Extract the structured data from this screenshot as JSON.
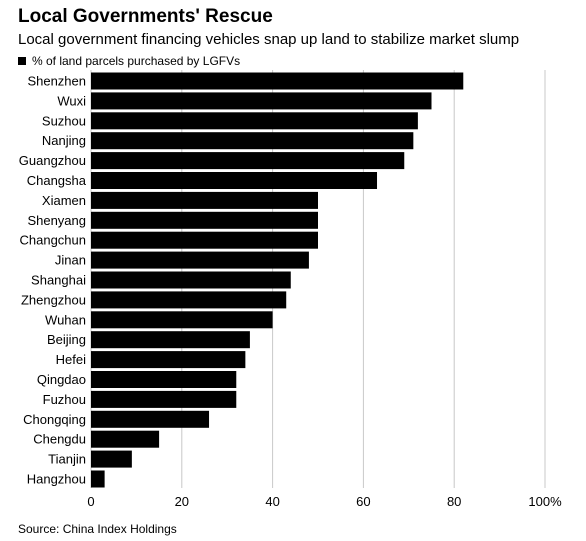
{
  "header": {
    "title": "Local Governments' Rescue",
    "subtitle": "Local government financing vehicles snap up land to stabilize market slump"
  },
  "legend": {
    "label": "% of land parcels purchased by LGFVs"
  },
  "footer": {
    "source": "Source: China Index Holdings"
  },
  "colors": {
    "bar": "#000000",
    "grid": "#c8c8c8",
    "text": "#000000",
    "background": "#ffffff"
  },
  "chart_data": {
    "type": "bar",
    "orientation": "horizontal",
    "title": "Local Governments' Rescue",
    "subtitle": "Local government financing vehicles snap up land to stabilize market slump",
    "legend": [
      "% of land parcels purchased by LGFVs"
    ],
    "legend_position": "top-left",
    "categories": [
      "Shenzhen",
      "Wuxi",
      "Suzhou",
      "Nanjing",
      "Guangzhou",
      "Changsha",
      "Xiamen",
      "Shenyang",
      "Changchun",
      "Jinan",
      "Shanghai",
      "Zhengzhou",
      "Wuhan",
      "Beijing",
      "Hefei",
      "Qingdao",
      "Fuzhou",
      "Chongqing",
      "Chengdu",
      "Tianjin",
      "Hangzhou"
    ],
    "series": [
      {
        "name": "% of land parcels purchased by LGFVs",
        "values": [
          82,
          75,
          72,
          71,
          69,
          63,
          50,
          50,
          50,
          48,
          44,
          43,
          40,
          35,
          34,
          32,
          32,
          26,
          15,
          9,
          3
        ]
      }
    ],
    "xlim": [
      0,
      100
    ],
    "xticks": [
      0,
      20,
      40,
      60,
      80,
      100
    ],
    "xtick_labels": [
      "0",
      "20",
      "40",
      "60",
      "80",
      "100%"
    ],
    "grid": true
  }
}
